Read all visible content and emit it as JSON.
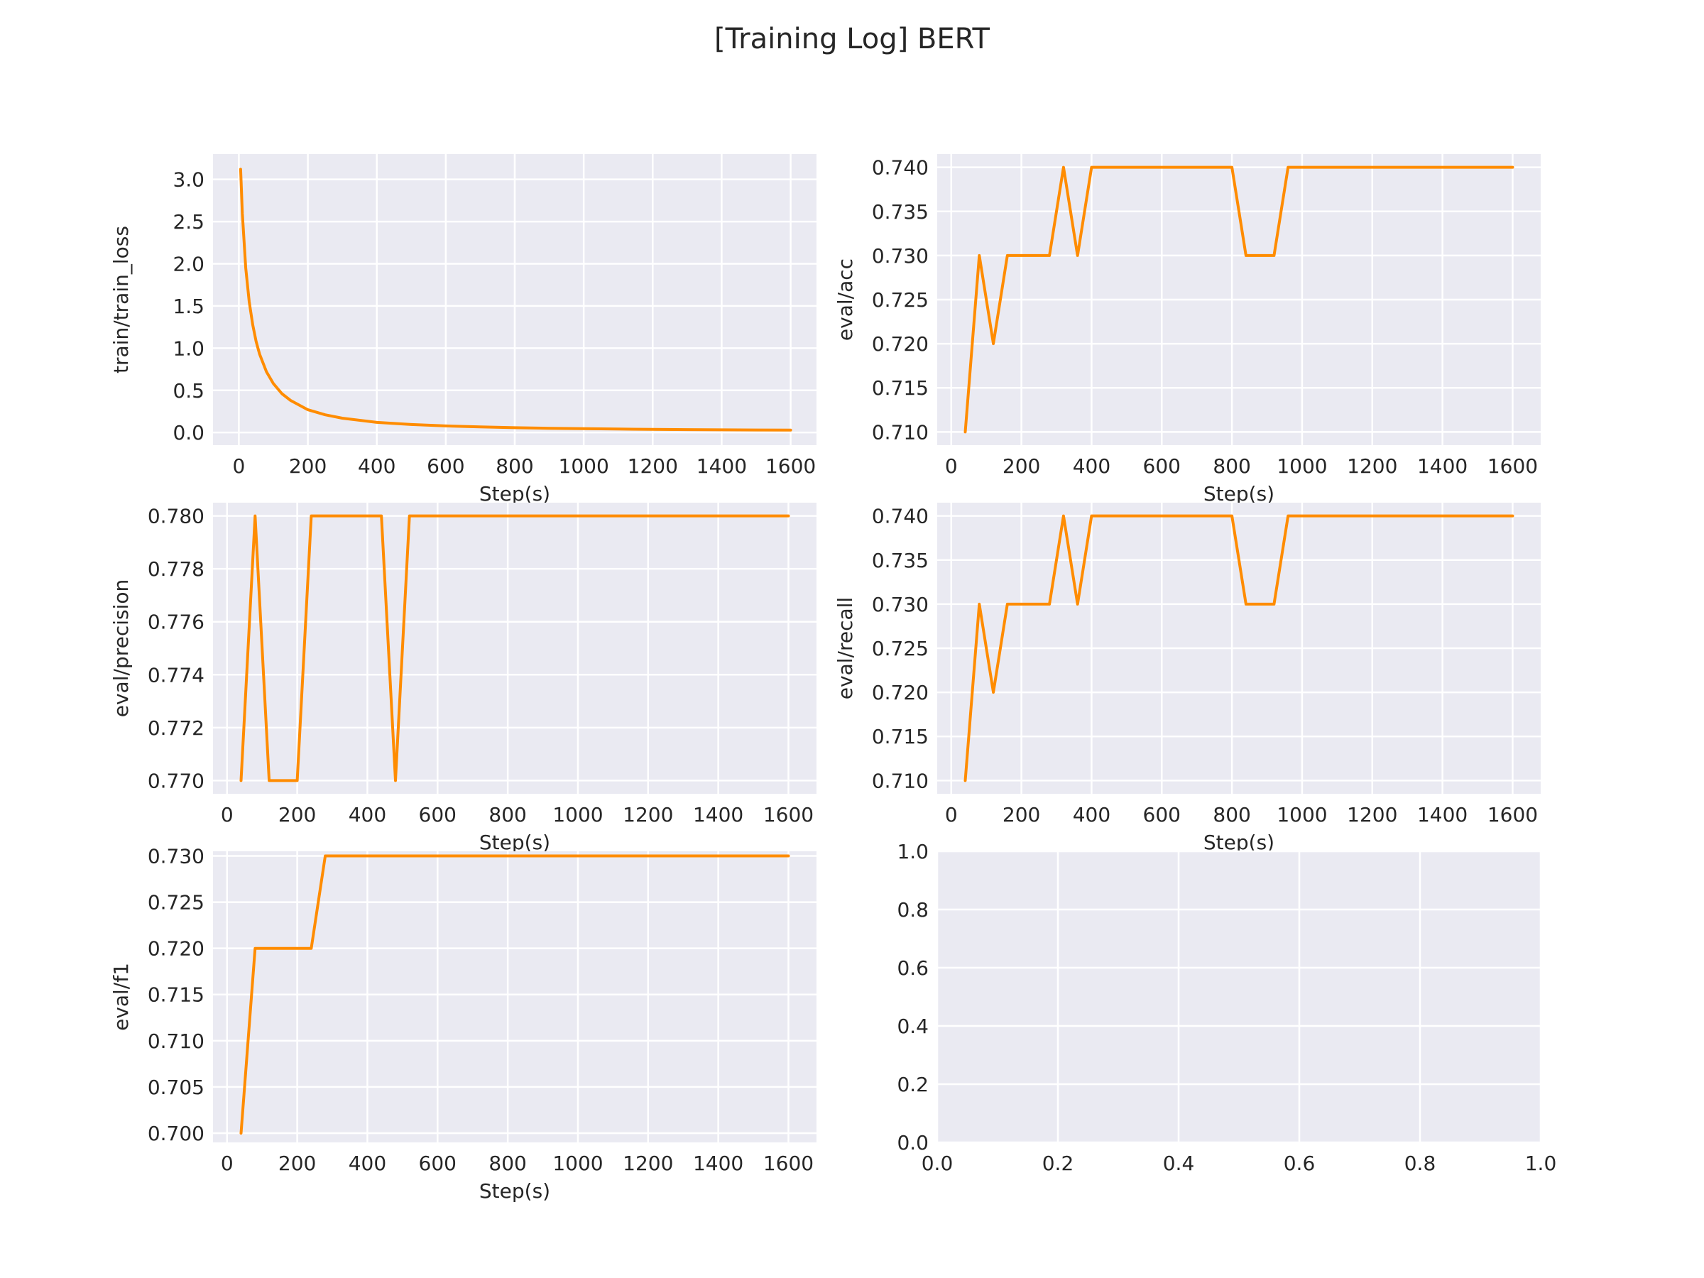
{
  "figure": {
    "title": "[Training Log] BERT",
    "line_color": "#ff8c00",
    "plot_background": "#eaeaf2",
    "grid_color": "#ffffff"
  },
  "chart_data": [
    {
      "id": "train-loss",
      "type": "line",
      "title": "",
      "xlabel": "Step(s)",
      "ylabel": "train/train_loss",
      "grid": true,
      "xlim": [
        -75,
        1675
      ],
      "ylim": [
        -0.15,
        3.3
      ],
      "xticks": [
        0,
        200,
        400,
        600,
        800,
        1000,
        1200,
        1400,
        1600
      ],
      "xtick_labels": [
        "0",
        "200",
        "400",
        "600",
        "800",
        "1000",
        "1200",
        "1400",
        "1600"
      ],
      "yticks": [
        0.0,
        0.5,
        1.0,
        1.5,
        2.0,
        2.5,
        3.0
      ],
      "ytick_labels": [
        "0.0",
        "0.5",
        "1.0",
        "1.5",
        "2.0",
        "2.5",
        "3.0"
      ],
      "x": [
        5,
        10,
        20,
        30,
        40,
        50,
        60,
        80,
        100,
        125,
        150,
        200,
        250,
        300,
        400,
        500,
        600,
        700,
        800,
        900,
        1000,
        1100,
        1200,
        1300,
        1400,
        1500,
        1600
      ],
      "y": [
        3.12,
        2.6,
        1.95,
        1.55,
        1.28,
        1.08,
        0.93,
        0.72,
        0.58,
        0.46,
        0.38,
        0.27,
        0.21,
        0.17,
        0.12,
        0.095,
        0.078,
        0.066,
        0.057,
        0.05,
        0.045,
        0.041,
        0.037,
        0.034,
        0.032,
        0.03,
        0.028
      ]
    },
    {
      "id": "eval-acc",
      "type": "line",
      "title": "",
      "xlabel": "Step(s)",
      "ylabel": "eval/acc",
      "grid": true,
      "xlim": [
        -40,
        1680
      ],
      "ylim": [
        0.7085,
        0.7415
      ],
      "xticks": [
        0,
        200,
        400,
        600,
        800,
        1000,
        1200,
        1400,
        1600
      ],
      "xtick_labels": [
        "0",
        "200",
        "400",
        "600",
        "800",
        "1000",
        "1200",
        "1400",
        "1600"
      ],
      "yticks": [
        0.71,
        0.715,
        0.72,
        0.725,
        0.73,
        0.735,
        0.74
      ],
      "ytick_labels": [
        "0.710",
        "0.715",
        "0.720",
        "0.725",
        "0.730",
        "0.735",
        "0.740"
      ],
      "x": [
        40,
        80,
        120,
        160,
        200,
        240,
        280,
        320,
        360,
        400,
        440,
        480,
        520,
        560,
        600,
        640,
        680,
        720,
        760,
        800,
        840,
        880,
        920,
        960,
        1000,
        1200,
        1400,
        1600
      ],
      "y": [
        0.71,
        0.73,
        0.72,
        0.73,
        0.73,
        0.73,
        0.73,
        0.74,
        0.73,
        0.74,
        0.74,
        0.74,
        0.74,
        0.74,
        0.74,
        0.74,
        0.74,
        0.74,
        0.74,
        0.74,
        0.73,
        0.73,
        0.73,
        0.74,
        0.74,
        0.74,
        0.74,
        0.74
      ]
    },
    {
      "id": "eval-precision",
      "type": "line",
      "title": "",
      "xlabel": "Step(s)",
      "ylabel": "eval/precision",
      "grid": true,
      "xlim": [
        -40,
        1680
      ],
      "ylim": [
        0.7695,
        0.7805
      ],
      "xticks": [
        0,
        200,
        400,
        600,
        800,
        1000,
        1200,
        1400,
        1600
      ],
      "xtick_labels": [
        "0",
        "200",
        "400",
        "600",
        "800",
        "1000",
        "1200",
        "1400",
        "1600"
      ],
      "yticks": [
        0.77,
        0.772,
        0.774,
        0.776,
        0.778,
        0.78
      ],
      "ytick_labels": [
        "0.770",
        "0.772",
        "0.774",
        "0.776",
        "0.778",
        "0.780"
      ],
      "x": [
        40,
        80,
        120,
        160,
        200,
        240,
        280,
        320,
        360,
        400,
        440,
        480,
        520,
        600,
        800,
        1000,
        1200,
        1400,
        1600
      ],
      "y": [
        0.77,
        0.78,
        0.77,
        0.77,
        0.77,
        0.78,
        0.78,
        0.78,
        0.78,
        0.78,
        0.78,
        0.77,
        0.78,
        0.78,
        0.78,
        0.78,
        0.78,
        0.78,
        0.78
      ]
    },
    {
      "id": "eval-recall",
      "type": "line",
      "title": "",
      "xlabel": "Step(s)",
      "ylabel": "eval/recall",
      "grid": true,
      "xlim": [
        -40,
        1680
      ],
      "ylim": [
        0.7085,
        0.7415
      ],
      "xticks": [
        0,
        200,
        400,
        600,
        800,
        1000,
        1200,
        1400,
        1600
      ],
      "xtick_labels": [
        "0",
        "200",
        "400",
        "600",
        "800",
        "1000",
        "1200",
        "1400",
        "1600"
      ],
      "yticks": [
        0.71,
        0.715,
        0.72,
        0.725,
        0.73,
        0.735,
        0.74
      ],
      "ytick_labels": [
        "0.710",
        "0.715",
        "0.720",
        "0.725",
        "0.730",
        "0.735",
        "0.740"
      ],
      "x": [
        40,
        80,
        120,
        160,
        200,
        240,
        280,
        320,
        360,
        400,
        440,
        480,
        520,
        560,
        600,
        640,
        680,
        720,
        760,
        800,
        840,
        880,
        920,
        960,
        1000,
        1200,
        1400,
        1600
      ],
      "y": [
        0.71,
        0.73,
        0.72,
        0.73,
        0.73,
        0.73,
        0.73,
        0.74,
        0.73,
        0.74,
        0.74,
        0.74,
        0.74,
        0.74,
        0.74,
        0.74,
        0.74,
        0.74,
        0.74,
        0.74,
        0.73,
        0.73,
        0.73,
        0.74,
        0.74,
        0.74,
        0.74,
        0.74
      ]
    },
    {
      "id": "eval-f1",
      "type": "line",
      "title": "",
      "xlabel": "Step(s)",
      "ylabel": "eval/f1",
      "grid": true,
      "xlim": [
        -40,
        1680
      ],
      "ylim": [
        0.699,
        0.7305
      ],
      "xticks": [
        0,
        200,
        400,
        600,
        800,
        1000,
        1200,
        1400,
        1600
      ],
      "xtick_labels": [
        "0",
        "200",
        "400",
        "600",
        "800",
        "1000",
        "1200",
        "1400",
        "1600"
      ],
      "yticks": [
        0.7,
        0.705,
        0.71,
        0.715,
        0.72,
        0.725,
        0.73
      ],
      "ytick_labels": [
        "0.700",
        "0.705",
        "0.710",
        "0.715",
        "0.720",
        "0.725",
        "0.730"
      ],
      "x": [
        40,
        80,
        120,
        160,
        200,
        240,
        280,
        320,
        400,
        600,
        800,
        1000,
        1200,
        1400,
        1600
      ],
      "y": [
        0.7,
        0.72,
        0.72,
        0.72,
        0.72,
        0.72,
        0.73,
        0.73,
        0.73,
        0.73,
        0.73,
        0.73,
        0.73,
        0.73,
        0.73
      ]
    },
    {
      "id": "empty-axes",
      "type": "line",
      "title": "",
      "xlabel": "",
      "ylabel": "",
      "grid": true,
      "xlim": [
        0,
        1
      ],
      "ylim": [
        0,
        1
      ],
      "xticks": [
        0.0,
        0.2,
        0.4,
        0.6,
        0.8,
        1.0
      ],
      "xtick_labels": [
        "0.0",
        "0.2",
        "0.4",
        "0.6",
        "0.8",
        "1.0"
      ],
      "yticks": [
        0.0,
        0.2,
        0.4,
        0.6,
        0.8,
        1.0
      ],
      "ytick_labels": [
        "0.0",
        "0.2",
        "0.4",
        "0.6",
        "0.8",
        "1.0"
      ],
      "x": [],
      "y": []
    }
  ]
}
